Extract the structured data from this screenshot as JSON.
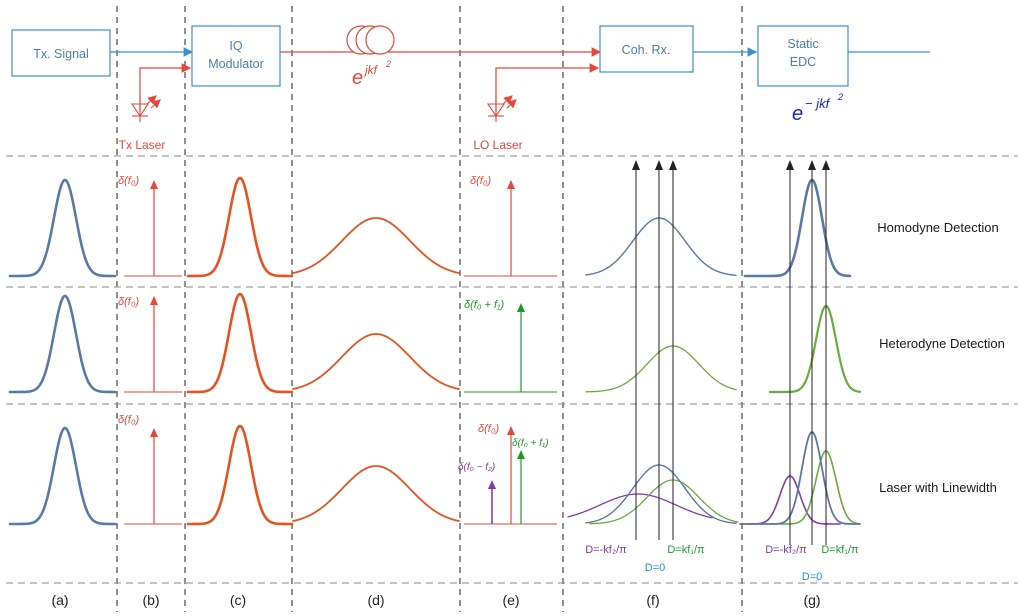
{
  "blocks": {
    "tx_signal": "Tx. Signal",
    "iq_modulator_line1": "IQ",
    "iq_modulator_line2": "Modulator",
    "coh_rx": "Coh. Rx.",
    "static_edc_line1": "Static",
    "static_edc_line2": "EDC",
    "tx_laser": "Tx Laser",
    "lo_laser": "LO Laser"
  },
  "formulas": {
    "fiber_base": "e",
    "fiber_exp": "jkf",
    "fiber_exp_sup": "2",
    "edc_base": "e",
    "edc_exp": "− jkf",
    "edc_exp_sup": "2"
  },
  "deltas": {
    "b1": "δ(f₀)",
    "b2": "δ(f₀)",
    "b3": "δ(f₀)",
    "e1": "δ(f₀)",
    "e2": "δ(f₀ + f₁)",
    "e3_main": "δ(f₀)",
    "e3_plus": "δ(f₀ + f₁)",
    "e3_minus": "δ(f₀ − f₂)"
  },
  "row_labels": [
    "Homodyne Detection",
    "Heterodyne Detection",
    "Laser with Linewidth"
  ],
  "panel_labels": [
    "(a)",
    "(b)",
    "(c)",
    "(d)",
    "(e)",
    "(f)",
    "(g)"
  ],
  "annotations": {
    "f_minus": "D=-kf₂/π",
    "f_plus": "D=kf₁/π",
    "f_zero": "D=0",
    "g_minus": "D=-kf₂/π",
    "g_plus": "D=kf₁/π",
    "g_zero": "D=0"
  },
  "colors": {
    "signal_blue": "#5b79a8",
    "laser_red": "#e8463a",
    "pulse_red": "#e8521f",
    "heterodyne_green": "#6aac3f",
    "delta_green": "#1f9a2a",
    "linewidth_purple": "#8a3aa8",
    "box_blue": "#3c8fcf",
    "d_zero_blue": "#2b8fd0",
    "edc_formula_blue": "#1a20c8"
  }
}
